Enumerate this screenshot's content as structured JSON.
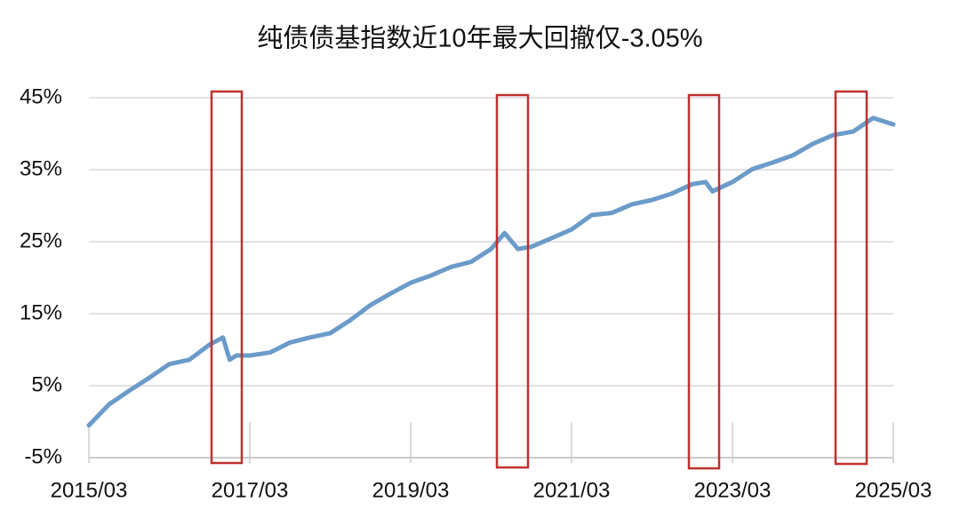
{
  "chart_data": {
    "type": "line",
    "title": "纯债债基指数近10年最大回撤仅-3.05%",
    "x": [
      "2015/03",
      "2015/06",
      "2015/09",
      "2015/12",
      "2016/03",
      "2016/06",
      "2016/09",
      "2016/11",
      "2016/12",
      "2017/01",
      "2017/03",
      "2017/06",
      "2017/09",
      "2017/12",
      "2018/03",
      "2018/06",
      "2018/09",
      "2018/12",
      "2019/03",
      "2019/06",
      "2019/09",
      "2019/12",
      "2020/03",
      "2020/05",
      "2020/07",
      "2020/09",
      "2020/12",
      "2021/03",
      "2021/06",
      "2021/09",
      "2021/12",
      "2022/03",
      "2022/06",
      "2022/09",
      "2022/11",
      "2022/12",
      "2023/03",
      "2023/06",
      "2023/09",
      "2023/12",
      "2024/03",
      "2024/06",
      "2024/09",
      "2024/12",
      "2025/03"
    ],
    "values": [
      -0.5,
      2.4,
      4.3,
      6.1,
      8.0,
      8.6,
      10.7,
      11.7,
      8.6,
      9.2,
      9.2,
      9.6,
      11.0,
      11.7,
      12.3,
      14.1,
      16.2,
      17.8,
      19.3,
      20.3,
      21.5,
      22.2,
      24.0,
      26.2,
      24.0,
      24.3,
      25.5,
      26.7,
      28.7,
      29.0,
      30.2,
      30.8,
      31.7,
      33.0,
      33.3,
      32.0,
      33.3,
      35.1,
      36.0,
      37.0,
      38.6,
      39.8,
      40.3,
      42.2,
      41.3
    ],
    "color": "#6b9bc9",
    "xlim": [
      "2015/03",
      "2025/03"
    ],
    "xticks": [
      "2015/03",
      "2017/03",
      "2019/03",
      "2021/03",
      "2023/03",
      "2025/03"
    ],
    "ylim": [
      -5,
      45
    ],
    "yticks": [
      {
        "value": -5,
        "label": "-5%"
      },
      {
        "value": 5,
        "label": "5%"
      },
      {
        "value": 15,
        "label": "15%"
      },
      {
        "value": 25,
        "label": "25%"
      },
      {
        "value": 35,
        "label": "35%"
      },
      {
        "value": 45,
        "label": "45%"
      }
    ],
    "grid": true
  }
}
